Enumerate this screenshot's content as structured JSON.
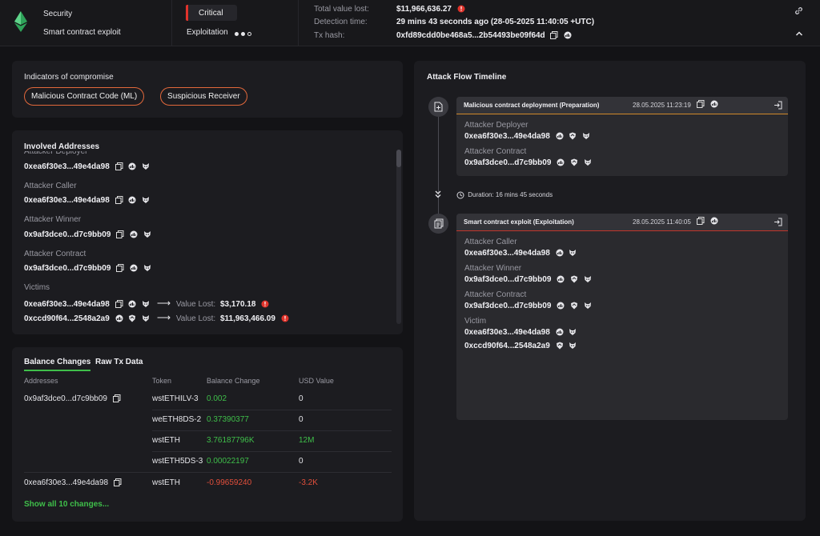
{
  "header": {
    "category": "Security",
    "title": "Smart contract exploit",
    "severity": "Critical",
    "stage": "Exploitation",
    "total_value_lost_label": "Total value lost:",
    "total_value_lost": "$11,966,636.27",
    "detection_time_label": "Detection time:",
    "detection_time": "29 mins 43 seconds ago (28-05-2025 11:40:05 +UTC)",
    "tx_hash_label": "Tx hash:",
    "tx_hash": "0xfd89cdd0be468a5...2b54493be09f64d"
  },
  "ioc": {
    "title": "Indicators of compromise",
    "pills": [
      "Malicious Contract Code (ML)",
      "Suspicious Receiver"
    ]
  },
  "involved": {
    "title": "Involved Addresses",
    "clipped_label": "Attacker Deployer",
    "groups": [
      {
        "label": "",
        "address": "0xea6f30e3...49e4da98"
      },
      {
        "label": "Attacker Caller",
        "address": "0xea6f30e3...49e4da98"
      },
      {
        "label": "Attacker Winner",
        "address": "0x9af3dce0...d7c9bb09"
      },
      {
        "label": "Attacker Contract",
        "address": "0x9af3dce0...d7c9bb09"
      }
    ],
    "victims_label": "Victims",
    "victims": [
      {
        "address": "0xea6f30e3...49e4da98",
        "value_lost_label": "Value Lost:",
        "value": "$3,170.18"
      },
      {
        "address": "0xccd90f64...2548a2a9",
        "value_lost_label": "Value Lost:",
        "value": "$11,963,466.09"
      }
    ],
    "arrow": "⟶"
  },
  "balance": {
    "tabs": [
      "Balance Changes",
      "Raw Tx Data"
    ],
    "columns": [
      "Addresses",
      "Token",
      "Balance Change",
      "USD Value"
    ],
    "rows": [
      {
        "address": "0x9af3dce0...d7c9bb09",
        "token": "wstETHILV-3",
        "change": "0.002",
        "usd": "0"
      },
      {
        "address": "",
        "token": "weETH8DS-2",
        "change": "0.37390377",
        "usd": "0"
      },
      {
        "address": "",
        "token": "wstETH",
        "change": "3.76187796K",
        "usd": "12M"
      },
      {
        "address": "",
        "token": "wstETH5DS-3",
        "change": "0.00022197",
        "usd": "0"
      },
      {
        "address": "0xea6f30e3...49e4da98",
        "token": "wstETH",
        "change": "-0.99659240",
        "usd": "-3.2K"
      }
    ],
    "show_all": "Show all 10 changes..."
  },
  "timeline": {
    "title": "Attack Flow Timeline",
    "duration": "Duration: 16 mins 45 seconds",
    "steps": [
      {
        "title": "Malicious contract deployment",
        "phase": "(Preparation)",
        "time": "28.05.2025 11:23:19",
        "entries": [
          {
            "label": "Attacker Deployer",
            "address": "0xea6f30e3...49e4da98"
          },
          {
            "label": "Attacker Contract",
            "address": "0x9af3dce0...d7c9bb09"
          }
        ]
      },
      {
        "title": "Smart contract exploit",
        "phase": "(Exploitation)",
        "time": "28.05.2025 11:40:05",
        "entries": [
          {
            "label": "Attacker Caller",
            "address": "0xea6f30e3...49e4da98"
          },
          {
            "label": "Attacker Winner",
            "address": "0x9af3dce0...d7c9bb09"
          },
          {
            "label": "Attacker Contract",
            "address": "0x9af3dce0...d7c9bb09"
          },
          {
            "label": "Victim",
            "address": "0xea6f30e3...49e4da98"
          },
          {
            "label": "",
            "address": "0xccd90f64...2548a2a9"
          }
        ]
      }
    ]
  },
  "colors": {
    "accent_green": "#3fbf4a",
    "critical_red": "#e0332b",
    "loss_red": "#e24f3b",
    "pill_orange": "#e2683b"
  }
}
